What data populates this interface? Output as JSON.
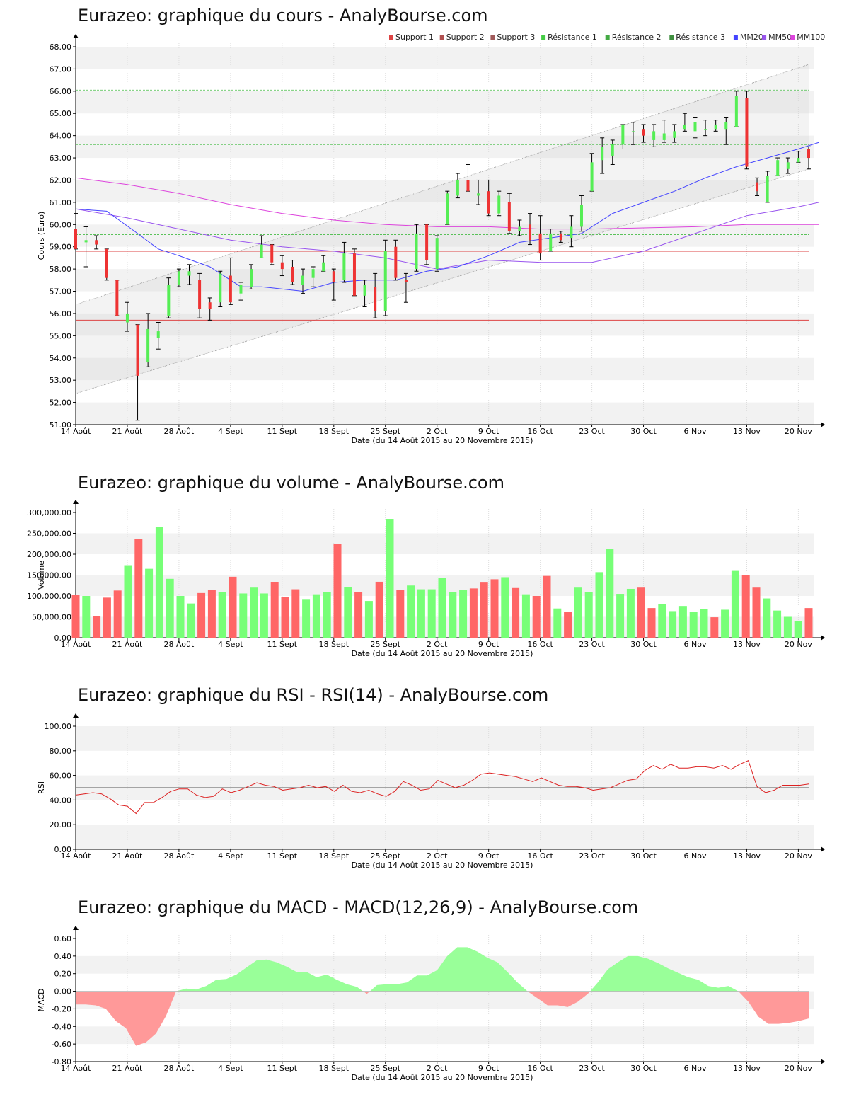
{
  "titles": {
    "price": "Eurazeo: graphique du cours - AnalyBourse.com",
    "volume": "Eurazeo: graphique du volume - AnalyBourse.com",
    "rsi": "Eurazeo: graphique du RSI - RSI(14) - AnalyBourse.com",
    "macd": "Eurazeo: graphique du MACD - MACD(12,26,9) - AnalyBourse.com"
  },
  "axis": {
    "date_label": "Date (du 14 Août 2015 au 20 Novembre 2015)",
    "price_ylabel": "Cours (Euro)",
    "volume_ylabel": "Volume",
    "rsi_ylabel": "RSI",
    "macd_ylabel": "MACD"
  },
  "legend": [
    {
      "label": "Support 1",
      "color": "#dd4444"
    },
    {
      "label": "Support 2",
      "color": "#b05050"
    },
    {
      "label": "Support 3",
      "color": "#a05a5a"
    },
    {
      "label": "Résistance 1",
      "color": "#44cc44"
    },
    {
      "label": "Résistance 2",
      "color": "#44aa44"
    },
    {
      "label": "Résistance 3",
      "color": "#3f8f3f"
    },
    {
      "label": "MM20",
      "color": "#4444ff"
    },
    {
      "label": "MM50",
      "color": "#9955ee"
    },
    {
      "label": "MM100",
      "color": "#dd44dd"
    }
  ],
  "colors": {
    "up": "#55ee55",
    "down": "#ee3333",
    "vol_up": "#77ff77",
    "vol_down": "#ff6666",
    "macd_pos": "#99ff99",
    "macd_neg": "#ff9999",
    "rsi": "#dd2222"
  },
  "chart_data": [
    {
      "type": "candlestick",
      "title": "Eurazeo: graphique du cours - AnalyBourse.com",
      "ylabel": "Cours (Euro)",
      "xlabel": "Date (du 14 Août 2015 au 20 Novembre 2015)",
      "ylim": [
        51,
        68
      ],
      "yticks": [
        "51.00",
        "52.00",
        "53.00",
        "54.00",
        "55.00",
        "56.00",
        "57.00",
        "58.00",
        "59.00",
        "60.00",
        "61.00",
        "62.00",
        "63.00",
        "64.00",
        "65.00",
        "66.00",
        "67.00",
        "68.00"
      ],
      "xticks": [
        {
          "label": "14 Août",
          "i": 0
        },
        {
          "label": "21 Août",
          "i": 5
        },
        {
          "label": "28 Août",
          "i": 10
        },
        {
          "label": "4 Sept",
          "i": 15
        },
        {
          "label": "11 Sept",
          "i": 20
        },
        {
          "label": "18 Sept",
          "i": 25
        },
        {
          "label": "25 Sept",
          "i": 30
        },
        {
          "label": "2 Oct",
          "i": 35
        },
        {
          "label": "9 Oct",
          "i": 40
        },
        {
          "label": "16 Oct",
          "i": 45
        },
        {
          "label": "23 Oct",
          "i": 50
        },
        {
          "label": "30 Oct",
          "i": 55
        },
        {
          "label": "6 Nov",
          "i": 60
        },
        {
          "label": "13 Nov",
          "i": 65
        },
        {
          "label": "20 Nov",
          "i": 70
        }
      ],
      "candles": [
        [
          59.8,
          60.5,
          58.9,
          58.9
        ],
        [
          59.2,
          59.9,
          58.1,
          59.3
        ],
        [
          59.3,
          59.5,
          58.9,
          59.1
        ],
        [
          58.9,
          58.9,
          57.5,
          57.6
        ],
        [
          57.5,
          57.5,
          55.9,
          55.9
        ],
        [
          55.6,
          56.5,
          55.2,
          56.0
        ],
        [
          55.5,
          55.5,
          51.2,
          53.2
        ],
        [
          53.8,
          56.0,
          53.6,
          55.3
        ],
        [
          54.9,
          55.6,
          54.4,
          55.2
        ],
        [
          55.9,
          57.6,
          55.8,
          57.3
        ],
        [
          57.3,
          58.0,
          57.2,
          57.9
        ],
        [
          57.7,
          58.2,
          57.3,
          57.9
        ],
        [
          57.5,
          57.8,
          55.8,
          56.2
        ],
        [
          56.5,
          56.7,
          55.7,
          56.2
        ],
        [
          56.5,
          57.9,
          56.3,
          57.8
        ],
        [
          57.7,
          58.5,
          56.4,
          56.5
        ],
        [
          56.9,
          57.4,
          56.6,
          57.3
        ],
        [
          57.2,
          58.2,
          57.1,
          58.0
        ],
        [
          58.5,
          59.5,
          58.5,
          59.1
        ],
        [
          59.1,
          59.1,
          58.2,
          58.3
        ],
        [
          58.3,
          58.6,
          57.7,
          58.0
        ],
        [
          58.1,
          58.4,
          57.3,
          57.4
        ],
        [
          57.3,
          58.0,
          56.9,
          57.7
        ],
        [
          57.6,
          58.1,
          57.2,
          58.0
        ],
        [
          57.9,
          58.6,
          57.9,
          58.3
        ],
        [
          57.9,
          58.0,
          56.6,
          57.4
        ],
        [
          57.5,
          59.2,
          57.4,
          58.7
        ],
        [
          58.7,
          58.9,
          56.8,
          56.8
        ],
        [
          56.8,
          57.5,
          56.3,
          57.3
        ],
        [
          57.2,
          57.8,
          55.8,
          56.1
        ],
        [
          56.1,
          59.3,
          55.9,
          58.8
        ],
        [
          59.0,
          59.3,
          57.5,
          57.6
        ],
        [
          57.5,
          57.8,
          56.5,
          57.4
        ],
        [
          58.0,
          60.0,
          57.9,
          59.6
        ],
        [
          60.0,
          60.0,
          58.2,
          58.4
        ],
        [
          58.0,
          59.5,
          57.9,
          59.4
        ],
        [
          60.0,
          61.5,
          60.0,
          61.4
        ],
        [
          61.3,
          62.3,
          61.2,
          62.0
        ],
        [
          62.0,
          62.7,
          61.5,
          61.5
        ],
        [
          61.3,
          62.0,
          60.9,
          61.4
        ],
        [
          61.5,
          62.0,
          60.4,
          60.5
        ],
        [
          60.5,
          61.5,
          60.4,
          61.3
        ],
        [
          61.0,
          61.4,
          59.6,
          59.7
        ],
        [
          59.7,
          60.2,
          59.5,
          59.9
        ],
        [
          60.0,
          60.5,
          59.1,
          59.3
        ],
        [
          59.6,
          60.4,
          58.4,
          58.7
        ],
        [
          58.8,
          59.8,
          58.8,
          59.6
        ],
        [
          59.6,
          59.7,
          59.2,
          59.3
        ],
        [
          59.4,
          60.4,
          59.0,
          59.9
        ],
        [
          59.9,
          61.3,
          59.7,
          60.9
        ],
        [
          61.5,
          63.2,
          61.5,
          62.8
        ],
        [
          62.9,
          63.9,
          62.3,
          63.5
        ],
        [
          63.1,
          63.8,
          62.7,
          63.6
        ],
        [
          63.6,
          64.5,
          63.4,
          64.5
        ],
        [
          64.2,
          64.6,
          63.6,
          64.2
        ],
        [
          64.3,
          64.5,
          63.7,
          64.0
        ],
        [
          63.8,
          64.5,
          63.5,
          64.2
        ],
        [
          63.8,
          64.7,
          63.7,
          64.1
        ],
        [
          63.9,
          64.5,
          63.7,
          64.2
        ],
        [
          64.3,
          65.0,
          64.2,
          64.5
        ],
        [
          64.2,
          64.8,
          63.9,
          64.6
        ],
        [
          64.3,
          64.7,
          64.0,
          64.3
        ],
        [
          64.3,
          64.7,
          64.2,
          64.5
        ],
        [
          64.3,
          64.8,
          63.6,
          64.6
        ],
        [
          64.4,
          66.0,
          64.4,
          65.8
        ],
        [
          65.7,
          66.0,
          62.5,
          62.6
        ],
        [
          61.9,
          62.1,
          61.3,
          61.5
        ],
        [
          61.0,
          62.4,
          61.0,
          62.2
        ],
        [
          62.2,
          63.0,
          62.2,
          62.9
        ],
        [
          62.5,
          63.0,
          62.3,
          62.8
        ],
        [
          62.8,
          63.3,
          62.8,
          63.0
        ],
        [
          63.4,
          63.5,
          62.5,
          63.0
        ]
      ],
      "support_lines": [
        58.8,
        55.7
      ],
      "resistance_lines": [
        59.55,
        63.6,
        66.05
      ],
      "channel_upper": [
        56.4,
        67.2
      ],
      "channel_lower": [
        52.4,
        62.5
      ],
      "mm20": [
        [
          0,
          60.7
        ],
        [
          3,
          60.6
        ],
        [
          6,
          59.6
        ],
        [
          8,
          58.9
        ],
        [
          10,
          58.6
        ],
        [
          13,
          58.1
        ],
        [
          16,
          57.2
        ],
        [
          18,
          57.2
        ],
        [
          22,
          57.0
        ],
        [
          25,
          57.4
        ],
        [
          28,
          57.5
        ],
        [
          31,
          57.5
        ],
        [
          34,
          57.9
        ],
        [
          37,
          58.1
        ],
        [
          40,
          58.6
        ],
        [
          43,
          59.2
        ],
        [
          46,
          59.4
        ],
        [
          49,
          59.6
        ],
        [
          52,
          60.5
        ],
        [
          55,
          61.0
        ],
        [
          58,
          61.5
        ],
        [
          61,
          62.1
        ],
        [
          64,
          62.6
        ],
        [
          67,
          63.0
        ],
        [
          70,
          63.4
        ],
        [
          72,
          63.7
        ]
      ],
      "mm50": [
        [
          0,
          60.7
        ],
        [
          5,
          60.3
        ],
        [
          10,
          59.8
        ],
        [
          15,
          59.3
        ],
        [
          20,
          59.0
        ],
        [
          25,
          58.8
        ],
        [
          30,
          58.5
        ],
        [
          35,
          58.0
        ],
        [
          40,
          58.4
        ],
        [
          45,
          58.3
        ],
        [
          50,
          58.3
        ],
        [
          55,
          58.8
        ],
        [
          60,
          59.6
        ],
        [
          65,
          60.4
        ],
        [
          70,
          60.8
        ],
        [
          72,
          61.0
        ]
      ],
      "mm100": [
        [
          0,
          62.1
        ],
        [
          5,
          61.8
        ],
        [
          10,
          61.4
        ],
        [
          15,
          60.9
        ],
        [
          20,
          60.5
        ],
        [
          25,
          60.2
        ],
        [
          30,
          60.0
        ],
        [
          35,
          59.9
        ],
        [
          40,
          59.9
        ],
        [
          45,
          59.8
        ],
        [
          50,
          59.8
        ],
        [
          55,
          59.85
        ],
        [
          60,
          59.9
        ],
        [
          65,
          60.0
        ],
        [
          70,
          60.0
        ],
        [
          72,
          60.0
        ]
      ]
    },
    {
      "type": "bar",
      "title": "Eurazeo: graphique du volume - AnalyBourse.com",
      "ylabel": "Volume",
      "ylim": [
        0,
        300000
      ],
      "yticks": [
        "0.00",
        "50,000.00",
        "100,000.00",
        "150,000.00",
        "200,000.00",
        "250,000.00",
        "300,000.00"
      ],
      "values": [
        102000,
        100000,
        52000,
        96000,
        113000,
        172000,
        236000,
        165000,
        265000,
        141000,
        100000,
        82000,
        107000,
        115000,
        110000,
        146000,
        106000,
        120000,
        106000,
        133000,
        98000,
        116000,
        91000,
        104000,
        110000,
        225000,
        122000,
        110000,
        88000,
        134000,
        283000,
        115000,
        125000,
        116000,
        116000,
        143000,
        110000,
        115000,
        118000,
        132000,
        140000,
        145000,
        119000,
        104000,
        100000,
        148000,
        70000,
        61000,
        120000,
        109000,
        157000,
        212000,
        105000,
        117000,
        120000,
        71000,
        80000,
        62000,
        76000,
        61000,
        69000,
        49000,
        67000,
        160000,
        150000,
        120000,
        94000,
        65000,
        50000,
        39000,
        71000
      ],
      "up": [
        false,
        true,
        false,
        false,
        false,
        true,
        false,
        true,
        true,
        true,
        true,
        true,
        false,
        false,
        true,
        false,
        true,
        true,
        true,
        false,
        false,
        false,
        true,
        true,
        true,
        false,
        true,
        false,
        true,
        false,
        true,
        false,
        true,
        true,
        true,
        true,
        true,
        true,
        false,
        false,
        false,
        true,
        false,
        true,
        false,
        false,
        true,
        false,
        true,
        true,
        true,
        true,
        true,
        true,
        false,
        false,
        true,
        true,
        true,
        true,
        true,
        false,
        true,
        true,
        false,
        false,
        true,
        true,
        true,
        true,
        false
      ]
    },
    {
      "type": "line",
      "title": "Eurazeo: graphique du RSI - RSI(14) - AnalyBourse.com",
      "ylabel": "RSI",
      "ylim": [
        0,
        100
      ],
      "yticks": [
        "0.00",
        "20.00",
        "40.00",
        "60.00",
        "80.00",
        "100.00"
      ],
      "reference": 50,
      "values": [
        44,
        45,
        46,
        45,
        41,
        36,
        35,
        29,
        38,
        38,
        42,
        47,
        49,
        49,
        44,
        42,
        43,
        49,
        46,
        48,
        51,
        54,
        52,
        51,
        48,
        49,
        50,
        52,
        50,
        51,
        47,
        52,
        47,
        46,
        48,
        45,
        43,
        47,
        55,
        52,
        48,
        49,
        56,
        53,
        50,
        52,
        56,
        61,
        62,
        61,
        60,
        59,
        57,
        55,
        58,
        55,
        52,
        51,
        51,
        50,
        48,
        49,
        50,
        53,
        56,
        57,
        64,
        68,
        65,
        69,
        66,
        66,
        67,
        67,
        66,
        68,
        65,
        69,
        72,
        51,
        46,
        48,
        52,
        52,
        52,
        53
      ],
      "rsi_x_scale": 0.835
    },
    {
      "type": "area",
      "title": "Eurazeo: graphique du MACD - MACD(12,26,9) - AnalyBourse.com",
      "ylabel": "MACD",
      "ylim": [
        -0.8,
        0.6
      ],
      "yticks": [
        "-0.80",
        "-0.60",
        "-0.40",
        "-0.20",
        "0.00",
        "0.20",
        "0.40",
        "0.60"
      ],
      "values": [
        -0.15,
        -0.15,
        -0.16,
        -0.2,
        -0.34,
        -0.42,
        -0.62,
        -0.58,
        -0.48,
        -0.28,
        0.0,
        0.03,
        0.02,
        0.06,
        0.13,
        0.14,
        0.19,
        0.27,
        0.35,
        0.36,
        0.33,
        0.28,
        0.22,
        0.22,
        0.16,
        0.19,
        0.13,
        0.08,
        0.05,
        -0.03,
        0.07,
        0.08,
        0.08,
        0.1,
        0.18,
        0.18,
        0.24,
        0.4,
        0.5,
        0.5,
        0.45,
        0.38,
        0.33,
        0.22,
        0.1,
        0.0,
        -0.08,
        -0.16,
        -0.16,
        -0.18,
        -0.12,
        -0.03,
        0.1,
        0.25,
        0.33,
        0.4,
        0.4,
        0.37,
        0.32,
        0.26,
        0.21,
        0.16,
        0.13,
        0.06,
        0.04,
        0.06,
        0.0,
        -0.12,
        -0.29,
        -0.37,
        -0.37,
        -0.36,
        -0.34,
        -0.31
      ]
    }
  ]
}
